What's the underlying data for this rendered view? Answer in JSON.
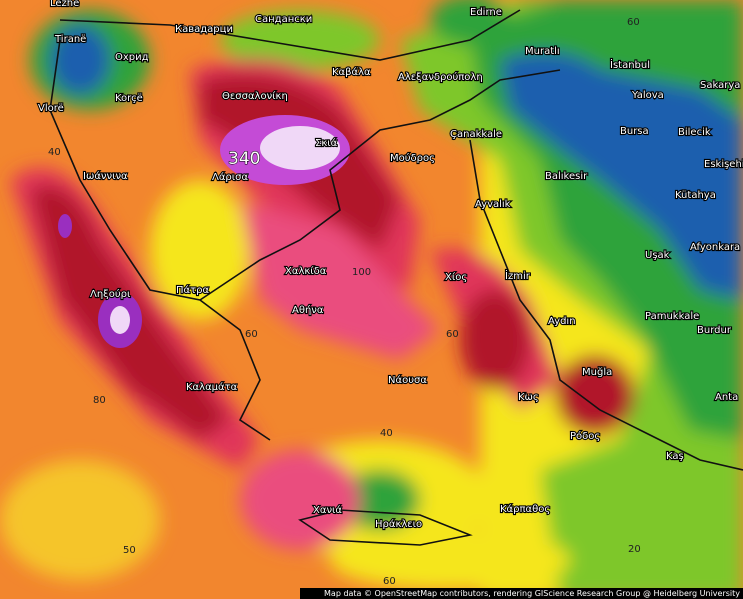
{
  "places": [
    "Lezhë",
    "Tiranë",
    "Охрид",
    "Korçë",
    "Vlorë",
    "Кавадарци",
    "Сандански",
    "Edirne",
    "Muratlı",
    "İstanbul",
    "Sakarya",
    "Καβάλα",
    "Αλεξανδρούπολη",
    "Θεσσαλονίκη",
    "Yalova",
    "Bursa",
    "Bilecik",
    "Çanakkale",
    "Σκιά",
    "Μούδρος",
    "Ιωάννινα",
    "Λάρισα",
    "Balıkesir",
    "Eskişehir",
    "Kütahya",
    "Ayvalık",
    "Afyonkara",
    "Χαλκίδα",
    "Uşak",
    "Χίος",
    "İzmir",
    "Ληξούρι",
    "Πάτρα",
    "Αθήνα",
    "Pamukkale",
    "Aydın",
    "Burdur",
    "Νάουσα",
    "Muğla",
    "Καλαμάτα",
    "Κως",
    "Anta",
    "Ρόδος",
    "Kaş",
    "Χανιά",
    "Ηράκλειο",
    "Κάρπαθος"
  ],
  "contour_labels": [
    "340",
    "40",
    "80",
    "60",
    "60",
    "40",
    "100",
    "20",
    "50",
    "60",
    "60"
  ],
  "attribution": "Map data © OpenStreetMap contributors, rendering GIScience Research Group @ Heidelberg University"
}
